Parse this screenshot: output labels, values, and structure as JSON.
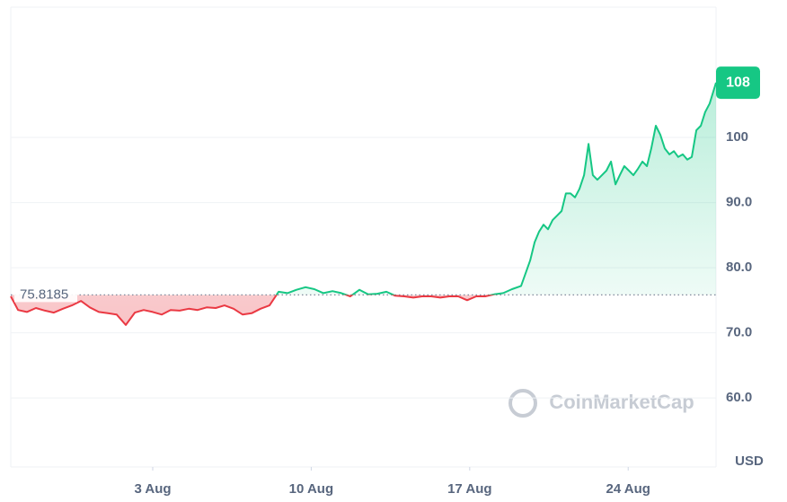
{
  "chart_data": {
    "type": "line",
    "baseline": {
      "value": 75.8185,
      "label": "75.8185"
    },
    "current_price": {
      "value": 108.4,
      "label": "108"
    },
    "currency": "USD",
    "watermark": "CoinMarketCap",
    "colors": {
      "up": "#16c784",
      "down": "#ea3943"
    },
    "grid": true,
    "xlim": [
      -3.27,
      27.88
    ],
    "xticks": [
      {
        "value": 3,
        "label": "3 Aug"
      },
      {
        "value": 10,
        "label": "10 Aug"
      },
      {
        "value": 17,
        "label": "17 Aug"
      },
      {
        "value": 24,
        "label": "24 Aug"
      }
    ],
    "ylim": [
      49.4,
      120.0
    ],
    "yticks": [
      {
        "value": 60,
        "label": "60.0"
      },
      {
        "value": 70,
        "label": "70.0"
      },
      {
        "value": 80,
        "label": "80.0"
      },
      {
        "value": 90,
        "label": "90.0"
      },
      100
    ],
    "x": [
      -3.27,
      -2.95,
      -2.56,
      -2.16,
      -1.76,
      -1.37,
      -0.97,
      -0.57,
      -0.17,
      0.22,
      0.62,
      1.02,
      1.41,
      1.81,
      2.21,
      2.6,
      3.0,
      3.4,
      3.79,
      4.19,
      4.59,
      4.98,
      5.38,
      5.78,
      6.17,
      6.57,
      6.97,
      7.37,
      7.76,
      8.16,
      8.56,
      8.95,
      9.35,
      9.75,
      10.14,
      10.54,
      10.94,
      11.33,
      11.73,
      12.13,
      12.52,
      12.92,
      13.32,
      13.71,
      14.11,
      14.51,
      14.9,
      15.3,
      15.7,
      16.1,
      16.49,
      16.89,
      17.29,
      17.68,
      18.08,
      18.48,
      18.87,
      19.27,
      19.67,
      19.87,
      20.06,
      20.26,
      20.46,
      20.66,
      20.86,
      21.06,
      21.25,
      21.45,
      21.65,
      21.85,
      22.05,
      22.25,
      22.44,
      22.64,
      22.84,
      23.04,
      23.24,
      23.44,
      23.63,
      23.83,
      24.03,
      24.23,
      24.43,
      24.63,
      24.83,
      25.02,
      25.22,
      25.42,
      25.62,
      25.82,
      26.02,
      26.21,
      26.41,
      26.61,
      26.81,
      27.01,
      27.21,
      27.4,
      27.6,
      27.88
    ],
    "values": [
      75.6,
      73.5,
      73.2,
      73.8,
      73.4,
      73.1,
      73.7,
      74.2,
      74.9,
      73.9,
      73.2,
      73.0,
      72.8,
      71.2,
      73.1,
      73.5,
      73.2,
      72.8,
      73.5,
      73.4,
      73.7,
      73.5,
      73.9,
      73.8,
      74.2,
      73.7,
      72.8,
      73.0,
      73.7,
      74.2,
      76.3,
      76.1,
      76.6,
      77.0,
      76.7,
      76.1,
      76.4,
      76.1,
      75.6,
      76.6,
      75.9,
      76.0,
      76.3,
      75.7,
      75.6,
      75.4,
      75.6,
      75.6,
      75.4,
      75.6,
      75.6,
      75.0,
      75.6,
      75.6,
      75.9,
      76.1,
      76.7,
      77.2,
      81.1,
      83.9,
      85.5,
      86.6,
      85.9,
      87.3,
      88.0,
      88.7,
      91.4,
      91.4,
      90.8,
      92.1,
      94.2,
      99.0,
      94.2,
      93.5,
      94.2,
      94.9,
      96.3,
      92.8,
      94.2,
      95.6,
      94.9,
      94.2,
      95.2,
      96.3,
      95.6,
      98.3,
      101.8,
      100.4,
      98.3,
      97.4,
      97.9,
      97.0,
      97.4,
      96.6,
      97.0,
      101.1,
      101.8,
      103.9,
      105.2,
      108.4
    ]
  }
}
